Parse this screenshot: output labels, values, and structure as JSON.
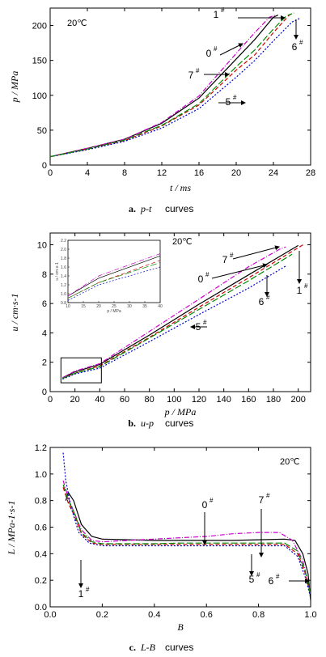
{
  "chart_data": [
    {
      "type": "line",
      "temperature": "20℃",
      "xlabel": "t / ms",
      "ylabel": "p / MPa",
      "xlim": [
        0,
        28
      ],
      "ylim": [
        0,
        225
      ],
      "xticks": [
        "0",
        "4",
        "8",
        "12",
        "16",
        "20",
        "24",
        "28"
      ],
      "yticks": [
        "0",
        "50",
        "100",
        "150",
        "200"
      ],
      "caption": {
        "letter": "a.",
        "title": "p-t",
        "rest": " curves"
      },
      "series": [
        {
          "name": "0#",
          "color": "#000000",
          "dash": "",
          "x": [
            0,
            4,
            8,
            12,
            16,
            20,
            22,
            24,
            24.5
          ],
          "y": [
            12,
            24,
            37,
            60,
            96,
            152,
            180,
            212,
            215
          ]
        },
        {
          "name": "1#",
          "color": "#cc00cc",
          "dash": "6,2,1,2",
          "x": [
            0,
            4,
            8,
            12,
            16,
            20,
            22,
            23.6,
            24.2
          ],
          "y": [
            12,
            24,
            37,
            61,
            99,
            160,
            190,
            212,
            215
          ]
        },
        {
          "name": "5#",
          "color": "#cc0000",
          "dash": "5,3",
          "x": [
            0,
            4,
            8,
            12,
            16,
            20,
            22,
            24,
            25.7,
            26.2
          ],
          "y": [
            12,
            23,
            35,
            56,
            86,
            136,
            158,
            190,
            215,
            218
          ]
        },
        {
          "name": "6#",
          "color": "#0000cc",
          "dash": "2,2",
          "x": [
            0,
            4,
            8,
            12,
            16,
            20,
            22,
            24,
            26,
            26.8
          ],
          "y": [
            12,
            22,
            34,
            53,
            81,
            126,
            150,
            178,
            205,
            210
          ]
        },
        {
          "name": "7#",
          "color": "#008800",
          "dash": "8,3",
          "x": [
            0,
            4,
            8,
            12,
            16,
            20,
            22,
            24,
            25.4,
            26
          ],
          "y": [
            12,
            23,
            36,
            57,
            88,
            141,
            165,
            195,
            214,
            217
          ]
        }
      ],
      "annotations": [
        {
          "text": "1",
          "sup": "#"
        },
        {
          "text": "0",
          "sup": "#"
        },
        {
          "text": "7",
          "sup": "#"
        },
        {
          "text": "5",
          "sup": "#"
        },
        {
          "text": "6",
          "sup": "#"
        }
      ]
    },
    {
      "type": "line",
      "temperature": "20℃",
      "xlabel": "p / MPa",
      "ylabel": "u / cm·s-1",
      "xlim": [
        0,
        210
      ],
      "ylim": [
        0,
        10.8
      ],
      "xticks": [
        "0",
        "20",
        "40",
        "60",
        "80",
        "100",
        "120",
        "140",
        "160",
        "180",
        "200"
      ],
      "yticks": [
        "0",
        "2",
        "4",
        "6",
        "8",
        "10"
      ],
      "caption": {
        "letter": "b.",
        "title": "u-p",
        "rest": " curves"
      },
      "series": [
        {
          "name": "0#",
          "color": "#000000",
          "dash": "",
          "x": [
            10,
            20,
            40,
            80,
            120,
            160,
            190,
            200
          ],
          "y": [
            0.95,
            1.35,
            1.85,
            3.85,
            5.95,
            7.95,
            9.45,
            9.95
          ]
        },
        {
          "name": "1#",
          "color": "#cc00cc",
          "dash": "6,2,1,2",
          "x": [
            10,
            20,
            40,
            80,
            120,
            160,
            185,
            190
          ],
          "y": [
            0.95,
            1.4,
            1.9,
            4.1,
            6.3,
            8.5,
            9.7,
            9.85
          ]
        },
        {
          "name": "5#",
          "color": "#cc0000",
          "dash": "5,3",
          "x": [
            10,
            20,
            40,
            80,
            120,
            160,
            200,
            205
          ],
          "y": [
            0.9,
            1.25,
            1.75,
            3.7,
            5.75,
            7.75,
            9.8,
            10.05
          ]
        },
        {
          "name": "6#",
          "color": "#0000cc",
          "dash": "2,2",
          "x": [
            10,
            20,
            40,
            80,
            120,
            160,
            190
          ],
          "y": [
            0.85,
            1.2,
            1.6,
            3.4,
            5.25,
            7.05,
            8.55
          ]
        },
        {
          "name": "7#",
          "color": "#008800",
          "dash": "8,3",
          "x": [
            10,
            20,
            40,
            80,
            120,
            160,
            195
          ],
          "y": [
            0.9,
            1.25,
            1.7,
            3.65,
            5.6,
            7.55,
            9.35
          ]
        }
      ],
      "annotations": [
        {
          "text": "7",
          "sup": "#"
        },
        {
          "text": "0",
          "sup": "#"
        },
        {
          "text": "6",
          "sup": "#"
        },
        {
          "text": "1",
          "sup": "#"
        },
        {
          "text": "5",
          "sup": "#"
        }
      ],
      "inset": {
        "xlabel": "p / MPa",
        "ylabel": "u / cm·s-1",
        "xticks": [
          "10",
          "15",
          "20",
          "25",
          "30",
          "35",
          "40"
        ],
        "yticks": [
          "0.8",
          "1.0",
          "1.2",
          "1.4",
          "1.6",
          "1.8",
          "2.0",
          "2.2"
        ]
      }
    },
    {
      "type": "line",
      "temperature": "20℃",
      "xlabel": "B",
      "ylabel": "L / MPa-1·s-1",
      "xlim": [
        0,
        1.0
      ],
      "ylim": [
        0,
        1.2
      ],
      "xticks": [
        "0.0",
        "0.2",
        "0.4",
        "0.6",
        "0.8",
        "1.0"
      ],
      "yticks": [
        "0.0",
        "0.2",
        "0.4",
        "0.6",
        "0.8",
        "1.0",
        "1.2"
      ],
      "caption": {
        "letter": "c.",
        "title": "L-B",
        "rest": " curves"
      },
      "series": [
        {
          "name": "0#",
          "color": "#000000",
          "dash": "",
          "x": [
            0.06,
            0.07,
            0.09,
            0.12,
            0.16,
            0.2,
            0.3,
            0.4,
            0.5,
            0.6,
            0.7,
            0.8,
            0.9,
            0.94,
            0.97,
            0.99,
            1.0
          ],
          "y": [
            0.8,
            0.86,
            0.8,
            0.62,
            0.53,
            0.51,
            0.505,
            0.5,
            0.5,
            0.5,
            0.5,
            0.505,
            0.51,
            0.5,
            0.4,
            0.25,
            0.05
          ]
        },
        {
          "name": "1#",
          "color": "#cc00cc",
          "dash": "6,2,1,2",
          "x": [
            0.05,
            0.07,
            0.09,
            0.12,
            0.16,
            0.2,
            0.3,
            0.4,
            0.5,
            0.6,
            0.7,
            0.8,
            0.88,
            0.93,
            0.97,
            1.0
          ],
          "y": [
            0.95,
            0.82,
            0.72,
            0.58,
            0.5,
            0.49,
            0.5,
            0.51,
            0.52,
            0.53,
            0.55,
            0.56,
            0.56,
            0.5,
            0.35,
            0.1
          ]
        },
        {
          "name": "5#",
          "color": "#cc0000",
          "dash": "5,3",
          "x": [
            0.05,
            0.07,
            0.09,
            0.12,
            0.16,
            0.2,
            0.3,
            0.4,
            0.5,
            0.6,
            0.7,
            0.8,
            0.9,
            0.95,
            0.98,
            1.0
          ],
          "y": [
            0.9,
            0.78,
            0.7,
            0.55,
            0.48,
            0.47,
            0.47,
            0.47,
            0.47,
            0.47,
            0.47,
            0.47,
            0.47,
            0.4,
            0.25,
            0.08
          ]
        },
        {
          "name": "6#",
          "color": "#0000cc",
          "dash": "2,2",
          "x": [
            0.05,
            0.06,
            0.08,
            0.11,
            0.15,
            0.2,
            0.3,
            0.4,
            0.5,
            0.6,
            0.7,
            0.8,
            0.9,
            0.95,
            0.98,
            1.0
          ],
          "y": [
            1.16,
            0.95,
            0.75,
            0.56,
            0.48,
            0.46,
            0.46,
            0.46,
            0.46,
            0.46,
            0.46,
            0.46,
            0.46,
            0.38,
            0.22,
            0.07
          ]
        },
        {
          "name": "7#",
          "color": "#008800",
          "dash": "8,3",
          "x": [
            0.05,
            0.07,
            0.09,
            0.12,
            0.16,
            0.2,
            0.3,
            0.4,
            0.5,
            0.6,
            0.7,
            0.8,
            0.9,
            0.95,
            0.98,
            1.0
          ],
          "y": [
            0.92,
            0.8,
            0.72,
            0.56,
            0.49,
            0.475,
            0.475,
            0.475,
            0.48,
            0.48,
            0.48,
            0.48,
            0.48,
            0.42,
            0.26,
            0.09
          ]
        }
      ],
      "annotations": [
        {
          "text": "0",
          "sup": "#"
        },
        {
          "text": "7",
          "sup": "#"
        },
        {
          "text": "1",
          "sup": "#"
        },
        {
          "text": "5",
          "sup": "#"
        },
        {
          "text": "6",
          "sup": "#"
        }
      ]
    }
  ]
}
